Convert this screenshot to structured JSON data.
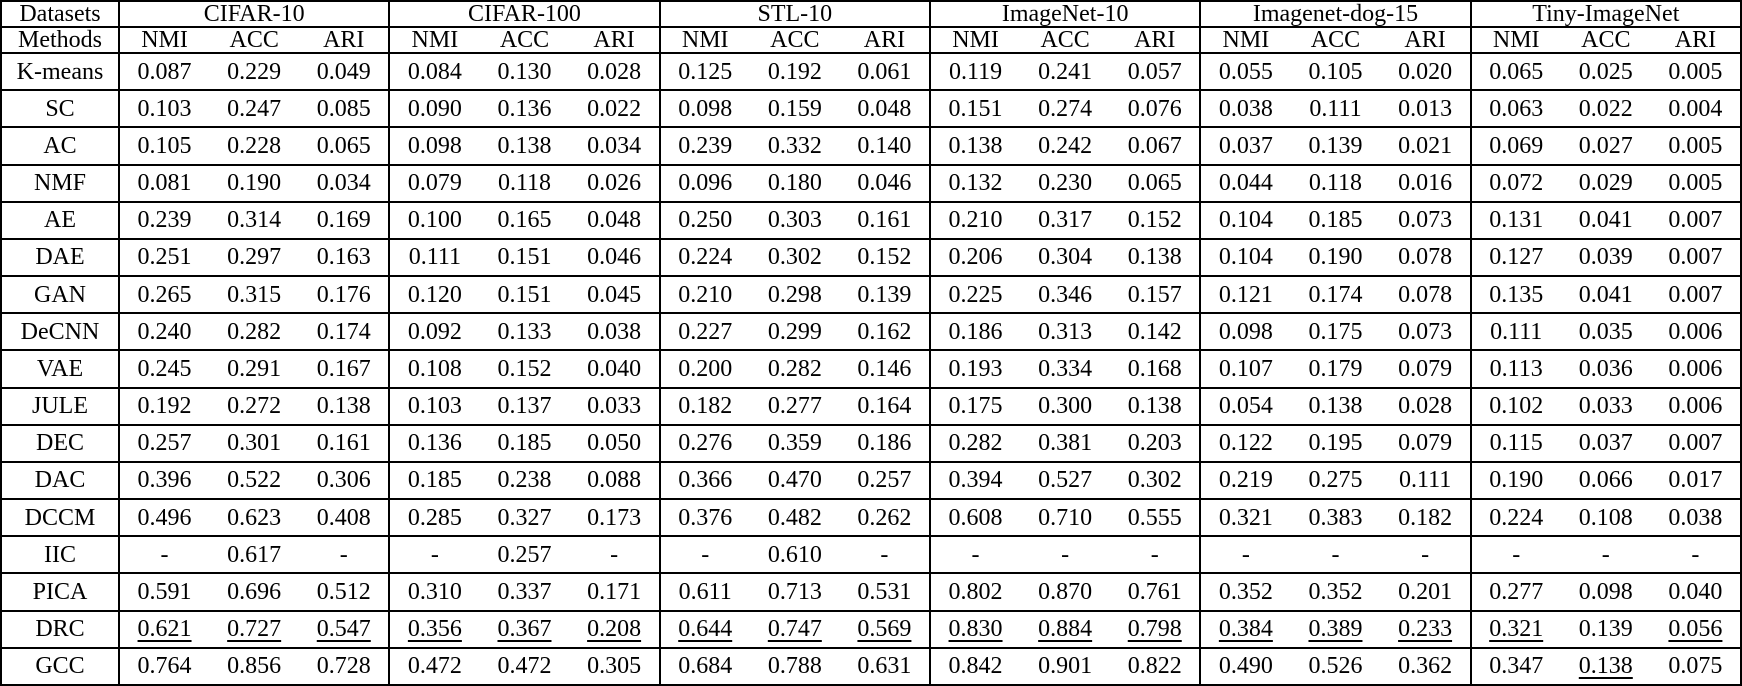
{
  "table": {
    "corner_top": "Datasets",
    "corner_bottom": "Methods",
    "metrics": [
      "NMI",
      "ACC",
      "ARI"
    ],
    "datasets": [
      "CIFAR-10",
      "CIFAR-100",
      "STL-10",
      "ImageNet-10",
      "Imagenet-dog-15",
      "Tiny-ImageNet"
    ],
    "text_color": "#000000",
    "background_color": "#ffffff",
    "rows": [
      {
        "method": "K-means",
        "values": [
          "0.087",
          "0.229",
          "0.049",
          "0.084",
          "0.130",
          "0.028",
          "0.125",
          "0.192",
          "0.061",
          "0.119",
          "0.241",
          "0.057",
          "0.055",
          "0.105",
          "0.020",
          "0.065",
          "0.025",
          "0.005"
        ]
      },
      {
        "method": "SC",
        "values": [
          "0.103",
          "0.247",
          "0.085",
          "0.090",
          "0.136",
          "0.022",
          "0.098",
          "0.159",
          "0.048",
          "0.151",
          "0.274",
          "0.076",
          "0.038",
          "0.111",
          "0.013",
          "0.063",
          "0.022",
          "0.004"
        ]
      },
      {
        "method": "AC",
        "values": [
          "0.105",
          "0.228",
          "0.065",
          "0.098",
          "0.138",
          "0.034",
          "0.239",
          "0.332",
          "0.140",
          "0.138",
          "0.242",
          "0.067",
          "0.037",
          "0.139",
          "0.021",
          "0.069",
          "0.027",
          "0.005"
        ]
      },
      {
        "method": "NMF",
        "values": [
          "0.081",
          "0.190",
          "0.034",
          "0.079",
          "0.118",
          "0.026",
          "0.096",
          "0.180",
          "0.046",
          "0.132",
          "0.230",
          "0.065",
          "0.044",
          "0.118",
          "0.016",
          "0.072",
          "0.029",
          "0.005"
        ]
      },
      {
        "method": "AE",
        "values": [
          "0.239",
          "0.314",
          "0.169",
          "0.100",
          "0.165",
          "0.048",
          "0.250",
          "0.303",
          "0.161",
          "0.210",
          "0.317",
          "0.152",
          "0.104",
          "0.185",
          "0.073",
          "0.131",
          "0.041",
          "0.007"
        ]
      },
      {
        "method": "DAE",
        "values": [
          "0.251",
          "0.297",
          "0.163",
          "0.111",
          "0.151",
          "0.046",
          "0.224",
          "0.302",
          "0.152",
          "0.206",
          "0.304",
          "0.138",
          "0.104",
          "0.190",
          "0.078",
          "0.127",
          "0.039",
          "0.007"
        ]
      },
      {
        "method": "GAN",
        "values": [
          "0.265",
          "0.315",
          "0.176",
          "0.120",
          "0.151",
          "0.045",
          "0.210",
          "0.298",
          "0.139",
          "0.225",
          "0.346",
          "0.157",
          "0.121",
          "0.174",
          "0.078",
          "0.135",
          "0.041",
          "0.007"
        ]
      },
      {
        "method": "DeCNN",
        "values": [
          "0.240",
          "0.282",
          "0.174",
          "0.092",
          "0.133",
          "0.038",
          "0.227",
          "0.299",
          "0.162",
          "0.186",
          "0.313",
          "0.142",
          "0.098",
          "0.175",
          "0.073",
          "0.111",
          "0.035",
          "0.006"
        ]
      },
      {
        "method": "VAE",
        "values": [
          "0.245",
          "0.291",
          "0.167",
          "0.108",
          "0.152",
          "0.040",
          "0.200",
          "0.282",
          "0.146",
          "0.193",
          "0.334",
          "0.168",
          "0.107",
          "0.179",
          "0.079",
          "0.113",
          "0.036",
          "0.006"
        ]
      },
      {
        "method": "JULE",
        "values": [
          "0.192",
          "0.272",
          "0.138",
          "0.103",
          "0.137",
          "0.033",
          "0.182",
          "0.277",
          "0.164",
          "0.175",
          "0.300",
          "0.138",
          "0.054",
          "0.138",
          "0.028",
          "0.102",
          "0.033",
          "0.006"
        ]
      },
      {
        "method": "DEC",
        "values": [
          "0.257",
          "0.301",
          "0.161",
          "0.136",
          "0.185",
          "0.050",
          "0.276",
          "0.359",
          "0.186",
          "0.282",
          "0.381",
          "0.203",
          "0.122",
          "0.195",
          "0.079",
          "0.115",
          "0.037",
          "0.007"
        ]
      },
      {
        "method": "DAC",
        "values": [
          "0.396",
          "0.522",
          "0.306",
          "0.185",
          "0.238",
          "0.088",
          "0.366",
          "0.470",
          "0.257",
          "0.394",
          "0.527",
          "0.302",
          "0.219",
          "0.275",
          "0.111",
          "0.190",
          "0.066",
          "0.017"
        ]
      },
      {
        "method": "DCCM",
        "values": [
          "0.496",
          "0.623",
          "0.408",
          "0.285",
          "0.327",
          "0.173",
          "0.376",
          "0.482",
          "0.262",
          "0.608",
          "0.710",
          "0.555",
          "0.321",
          "0.383",
          "0.182",
          "0.224",
          "0.108",
          "0.038"
        ]
      },
      {
        "method": "IIC",
        "values": [
          "-",
          "0.617",
          "-",
          "-",
          "0.257",
          "-",
          "-",
          "0.610",
          "-",
          "-",
          "-",
          "-",
          "-",
          "-",
          "-",
          "-",
          "-",
          "-"
        ]
      },
      {
        "method": "PICA",
        "values": [
          "0.591",
          "0.696",
          "0.512",
          "0.310",
          "0.337",
          "0.171",
          "0.611",
          "0.713",
          "0.531",
          "0.802",
          "0.870",
          "0.761",
          "0.352",
          "0.352",
          "0.201",
          "0.277",
          "0.098",
          "0.040"
        ]
      },
      {
        "method": "DRC",
        "values": [
          "0.621",
          "0.727",
          "0.547",
          "0.356",
          "0.367",
          "0.208",
          "0.644",
          "0.747",
          "0.569",
          "0.830",
          "0.884",
          "0.798",
          "0.384",
          "0.389",
          "0.233",
          "0.321",
          "0.139",
          "0.056"
        ],
        "styles": [
          "u",
          "u",
          "u",
          "u",
          "u",
          "u",
          "u",
          "u",
          "u",
          "u",
          "u",
          "u",
          "u",
          "u",
          "u",
          "u",
          "b",
          "u"
        ]
      },
      {
        "method": "GCC",
        "bold_method": true,
        "values": [
          "0.764",
          "0.856",
          "0.728",
          "0.472",
          "0.472",
          "0.305",
          "0.684",
          "0.788",
          "0.631",
          "0.842",
          "0.901",
          "0.822",
          "0.490",
          "0.526",
          "0.362",
          "0.347",
          "0.138",
          "0.075"
        ],
        "styles": [
          "b",
          "b",
          "b",
          "b",
          "b",
          "b",
          "b",
          "b",
          "b",
          "b",
          "b",
          "b",
          "b",
          "b",
          "b",
          "b",
          "u",
          "b"
        ]
      }
    ]
  }
}
